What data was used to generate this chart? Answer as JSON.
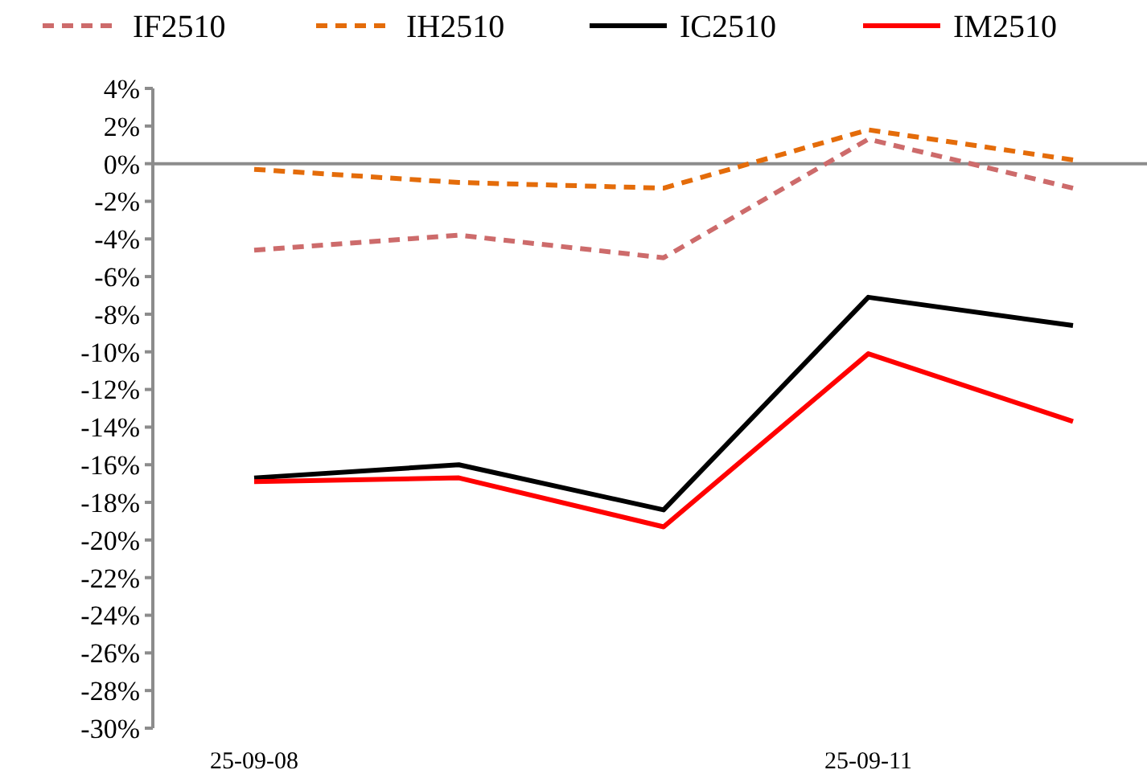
{
  "chart_data": {
    "type": "line",
    "categories": [
      "25-09-08",
      null,
      null,
      "25-09-11",
      null
    ],
    "series": [
      {
        "name": "IF2510",
        "color": "#cd6b6b",
        "line_style": "dashed",
        "values": [
          -4.6,
          -3.8,
          -5.0,
          1.3,
          -1.3
        ]
      },
      {
        "name": "IH2510",
        "color": "#e46c0a",
        "line_style": "dashed",
        "values": [
          -0.3,
          -1.0,
          -1.3,
          1.8,
          0.2
        ]
      },
      {
        "name": "IC2510",
        "color": "#000000",
        "line_style": "solid",
        "values": [
          -16.7,
          -16.0,
          -18.4,
          -7.1,
          -8.6
        ]
      },
      {
        "name": "IM2510",
        "color": "#ff0000",
        "line_style": "solid",
        "values": [
          -16.9,
          -16.7,
          -19.3,
          -10.1,
          -13.7
        ]
      }
    ],
    "ylim": [
      -30,
      4
    ],
    "yticks": [
      {
        "value": 4,
        "label": "4%"
      },
      {
        "value": 2,
        "label": "2%"
      },
      {
        "value": 0,
        "label": "0%"
      },
      {
        "value": -2,
        "label": "-2%"
      },
      {
        "value": -4,
        "label": "-4%"
      },
      {
        "value": -6,
        "label": "-6%"
      },
      {
        "value": -8,
        "label": "-8%"
      },
      {
        "value": -10,
        "label": "-10%"
      },
      {
        "value": -12,
        "label": "-12%"
      },
      {
        "value": -14,
        "label": "-14%"
      },
      {
        "value": -16,
        "label": "-16%"
      },
      {
        "value": -18,
        "label": "-18%"
      },
      {
        "value": -20,
        "label": "-20%"
      },
      {
        "value": -22,
        "label": "-22%"
      },
      {
        "value": -24,
        "label": "-24%"
      },
      {
        "value": -26,
        "label": "-26%"
      },
      {
        "value": -28,
        "label": "-28%"
      },
      {
        "value": -30,
        "label": "-30%"
      }
    ],
    "ref_lines": [
      {
        "axis": "y",
        "value": 0,
        "color": "#8c8c8c"
      }
    ],
    "legend": "top",
    "grid": false,
    "marker": "none"
  }
}
